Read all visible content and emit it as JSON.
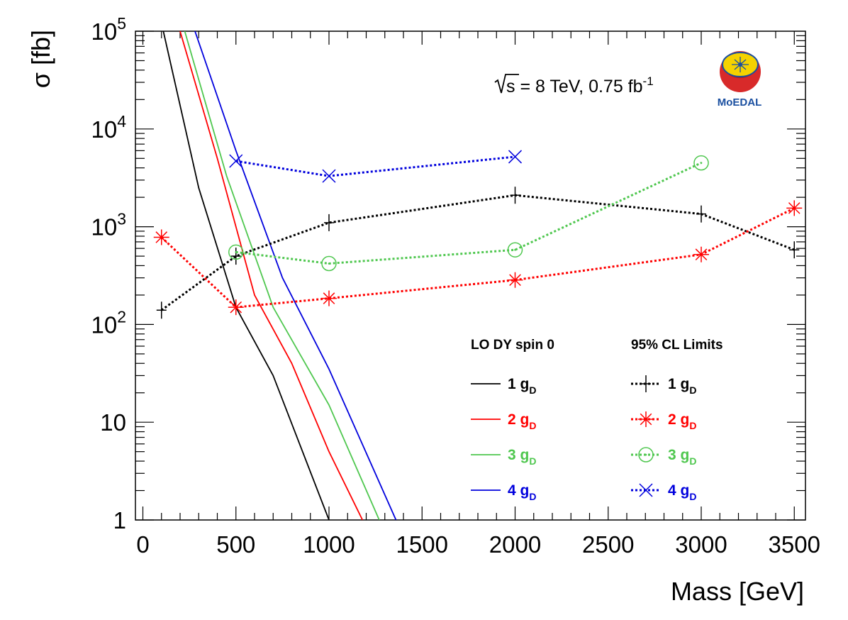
{
  "chart_data": {
    "type": "line",
    "xlabel": "Mass [GeV]",
    "ylabel": "σ [fb]",
    "y_scale": "log",
    "xlim": [
      -40,
      3560
    ],
    "ylim": [
      1,
      100000
    ],
    "x_ticks": [
      "0",
      "500",
      "1000",
      "1500",
      "2000",
      "2500",
      "3000",
      "3500"
    ],
    "y_ticks": [
      "1",
      "10",
      "10^2",
      "10^3",
      "10^4",
      "10^5"
    ],
    "annotation": {
      "prefix": "s",
      "text": " = 8 TeV, 0.75 fb",
      "sup": "-1"
    },
    "logo_text": "MoEDAL",
    "legend": {
      "theory_title": "LO DY spin 0",
      "limit_title": "95% CL Limits",
      "items": [
        {
          "num": "1 g",
          "sub": "D",
          "color": "#000000"
        },
        {
          "num": "2 g",
          "sub": "D",
          "color": "#ff0000"
        },
        {
          "num": "3 g",
          "sub": "D",
          "color": "#4fc74f"
        },
        {
          "num": "4 g",
          "sub": "D",
          "color": "#0000dd"
        }
      ]
    },
    "theory_series": [
      {
        "name": "1 gD",
        "color": "#000000",
        "x": [
          110,
          300,
          500,
          700,
          1000
        ],
        "y": [
          100000,
          2500,
          150,
          30,
          1
        ]
      },
      {
        "name": "2 gD",
        "color": "#ff0000",
        "x": [
          200,
          400,
          600,
          800,
          1000,
          1180
        ],
        "y": [
          100000,
          5000,
          200,
          40,
          5,
          1
        ]
      },
      {
        "name": "3 gD",
        "color": "#4fc74f",
        "x": [
          225,
          450,
          700,
          1000,
          1270
        ],
        "y": [
          100000,
          3300,
          150,
          15,
          1
        ]
      },
      {
        "name": "4 gD",
        "color": "#0000dd",
        "x": [
          280,
          500,
          750,
          1000,
          1360
        ],
        "y": [
          100000,
          6000,
          300,
          35,
          1
        ]
      }
    ],
    "limit_series": [
      {
        "name": "1 gD",
        "color": "#000000",
        "marker": "plus",
        "x": [
          100,
          500,
          1000,
          2000,
          3000,
          3500
        ],
        "y": [
          140,
          500,
          1100,
          2100,
          1350,
          580
        ]
      },
      {
        "name": "2 gD",
        "color": "#ff0000",
        "marker": "star",
        "x": [
          100,
          500,
          1000,
          2000,
          3000,
          3500
        ],
        "y": [
          780,
          150,
          185,
          285,
          520,
          1550
        ]
      },
      {
        "name": "3 gD",
        "color": "#4fc74f",
        "marker": "circle",
        "x": [
          500,
          1000,
          2000,
          3000
        ],
        "y": [
          550,
          420,
          580,
          4500
        ]
      },
      {
        "name": "4 gD",
        "color": "#0000dd",
        "marker": "cross",
        "x": [
          500,
          1000,
          2000
        ],
        "y": [
          4700,
          3300,
          5200
        ]
      }
    ]
  }
}
